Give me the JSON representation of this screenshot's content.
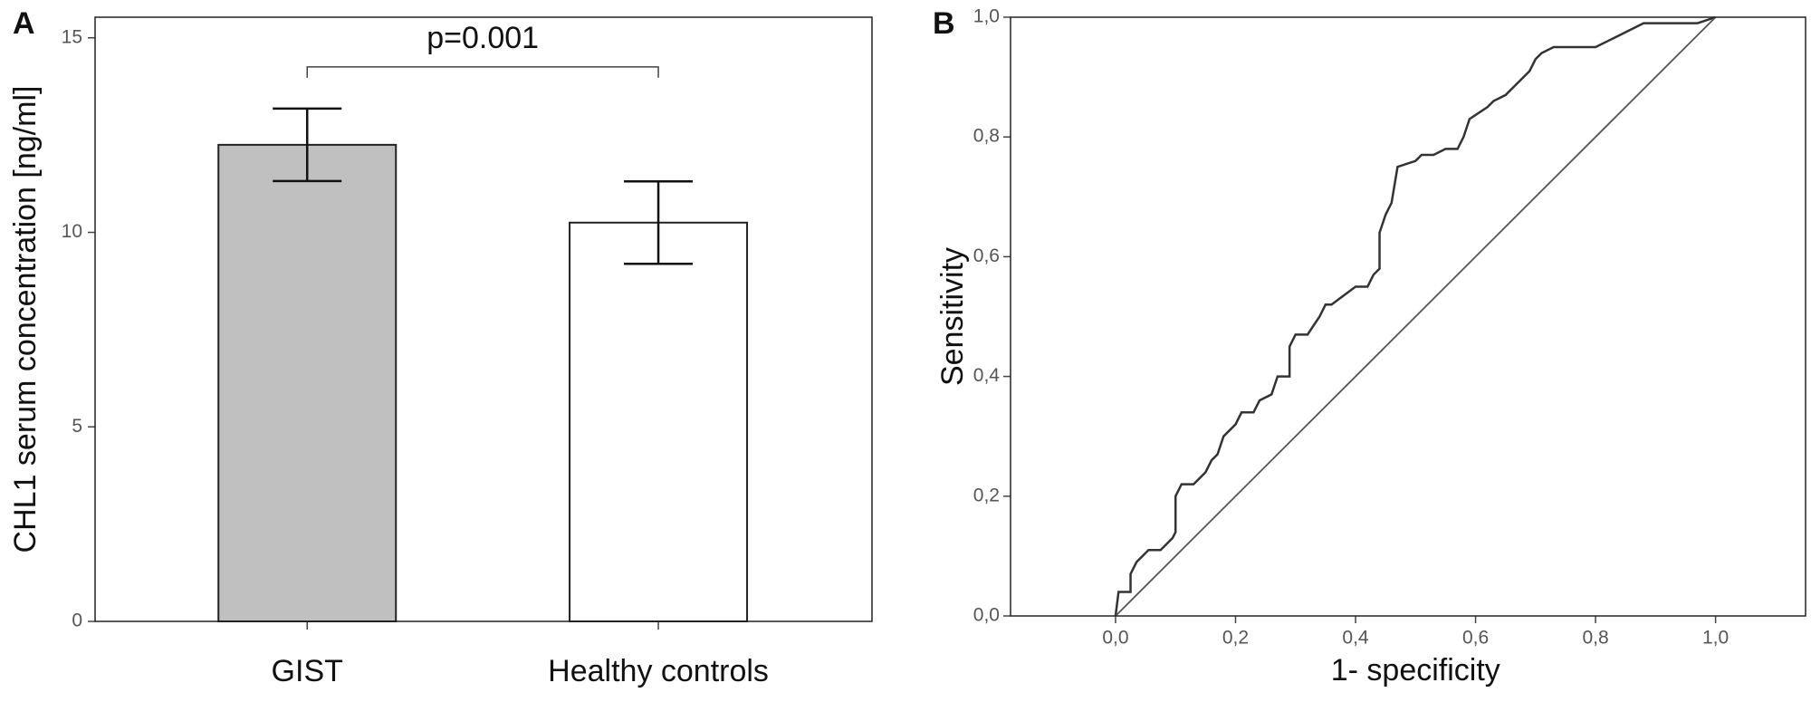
{
  "chart_data": [
    {
      "type": "bar",
      "panel": "A",
      "ylabel": "CHL1 serum concentration [ng/ml]",
      "categories": [
        "GIST",
        "Healthy controls"
      ],
      "values": [
        12.25,
        10.25
      ],
      "errors": [
        0.93,
        1.06
      ],
      "colors": [
        "#c0c0c0",
        "#ffffff"
      ],
      "annotation": "p=0.001",
      "ylim": [
        0,
        15.53
      ],
      "yticks": [
        0,
        5,
        10,
        15
      ]
    },
    {
      "type": "line",
      "panel": "B",
      "xlabel": "1- specificity",
      "ylabel": "Sensitivity",
      "xlim": [
        -0.175,
        1.15
      ],
      "ylim": [
        0,
        1
      ],
      "xticks": [
        {
          "value": 0,
          "label": "0,0"
        },
        {
          "value": 0.2,
          "label": "0,2"
        },
        {
          "value": 0.4,
          "label": "0,4"
        },
        {
          "value": 0.6,
          "label": "0,6"
        },
        {
          "value": 0.8,
          "label": "0,8"
        },
        {
          "value": 1,
          "label": "1,0"
        }
      ],
      "yticks": [
        {
          "value": 0,
          "label": "0,0"
        },
        {
          "value": 0.2,
          "label": "0,2"
        },
        {
          "value": 0.4,
          "label": "0,4"
        },
        {
          "value": 0.6,
          "label": "0,6"
        },
        {
          "value": 0.8,
          "label": "0,8"
        },
        {
          "value": 1,
          "label": "1,0"
        }
      ],
      "series": [
        {
          "color": "#333333",
          "x": [
            0,
            0.005,
            0.025,
            0.025,
            0.035,
            0.045,
            0.055,
            0.075,
            0.095,
            0.1,
            0.1,
            0.11,
            0.13,
            0.15,
            0.16,
            0.17,
            0.18,
            0.2,
            0.21,
            0.23,
            0.24,
            0.26,
            0.27,
            0.29,
            0.29,
            0.3,
            0.32,
            0.34,
            0.35,
            0.36,
            0.4,
            0.42,
            0.43,
            0.44,
            0.44,
            0.45,
            0.46,
            0.47,
            0.5,
            0.51,
            0.53,
            0.55,
            0.57,
            0.58,
            0.59,
            0.62,
            0.63,
            0.65,
            0.67,
            0.69,
            0.7,
            0.71,
            0.73,
            0.8,
            0.82,
            0.84,
            0.86,
            0.88,
            0.97,
            1
          ],
          "values": [
            0,
            0.04,
            0.04,
            0.07,
            0.09,
            0.1,
            0.11,
            0.11,
            0.13,
            0.14,
            0.2,
            0.22,
            0.22,
            0.24,
            0.26,
            0.27,
            0.3,
            0.32,
            0.34,
            0.34,
            0.36,
            0.37,
            0.4,
            0.4,
            0.45,
            0.47,
            0.47,
            0.5,
            0.52,
            0.52,
            0.55,
            0.55,
            0.57,
            0.58,
            0.64,
            0.67,
            0.69,
            0.75,
            0.76,
            0.77,
            0.77,
            0.78,
            0.78,
            0.8,
            0.83,
            0.85,
            0.86,
            0.87,
            0.89,
            0.91,
            0.93,
            0.94,
            0.95,
            0.95,
            0.96,
            0.97,
            0.98,
            0.99,
            0.99,
            1
          ]
        },
        {
          "color": "#555555",
          "x": [
            0,
            1
          ],
          "values": [
            0,
            1
          ]
        }
      ]
    }
  ]
}
